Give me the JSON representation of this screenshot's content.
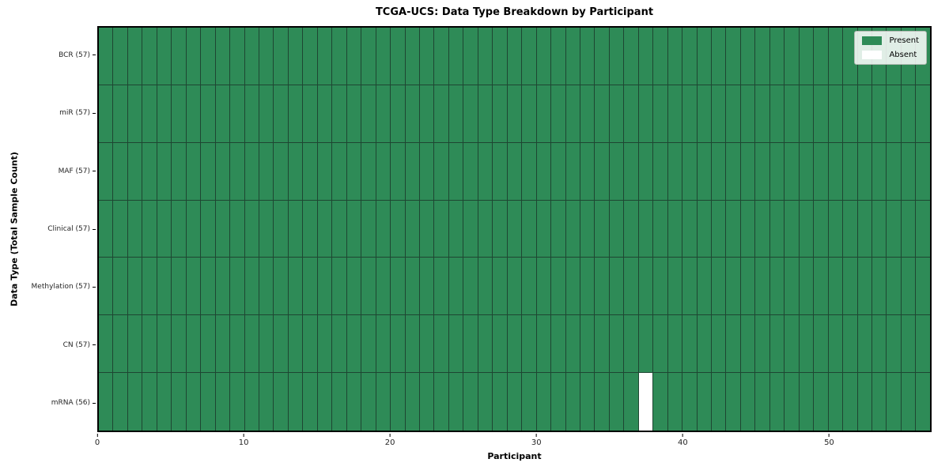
{
  "chart_data": {
    "type": "heatmap",
    "title": "TCGA-UCS: Data Type Breakdown by Participant",
    "xlabel": "Participant",
    "ylabel": "Data Type (Total Sample Count)",
    "x_ticks": [
      0,
      10,
      20,
      30,
      40,
      50
    ],
    "x_range": [
      0,
      57
    ],
    "n_participants": 57,
    "rows": [
      {
        "label": "BCR (57)",
        "data_type": "BCR",
        "present_count": 57,
        "absent_participants": []
      },
      {
        "label": "miR (57)",
        "data_type": "miR",
        "present_count": 57,
        "absent_participants": []
      },
      {
        "label": "MAF (57)",
        "data_type": "MAF",
        "present_count": 57,
        "absent_participants": []
      },
      {
        "label": "Clinical (57)",
        "data_type": "Clinical",
        "present_count": 57,
        "absent_participants": []
      },
      {
        "label": "Methylation (57)",
        "data_type": "Methylation",
        "present_count": 57,
        "absent_participants": []
      },
      {
        "label": "CN (57)",
        "data_type": "CN",
        "present_count": 57,
        "absent_participants": []
      },
      {
        "label": "mRNA (56)",
        "data_type": "mRNA",
        "present_count": 56,
        "absent_participants": [
          37
        ]
      }
    ],
    "legend": [
      {
        "label": "Present",
        "color": "#2e8b57"
      },
      {
        "label": "Absent",
        "color": "#ffffff"
      }
    ],
    "colors": {
      "present": "#2e8b57",
      "absent": "#ffffff",
      "grid_line": "#1e4632",
      "frame": "#000000"
    },
    "legend_position": "upper right",
    "grid": true
  }
}
